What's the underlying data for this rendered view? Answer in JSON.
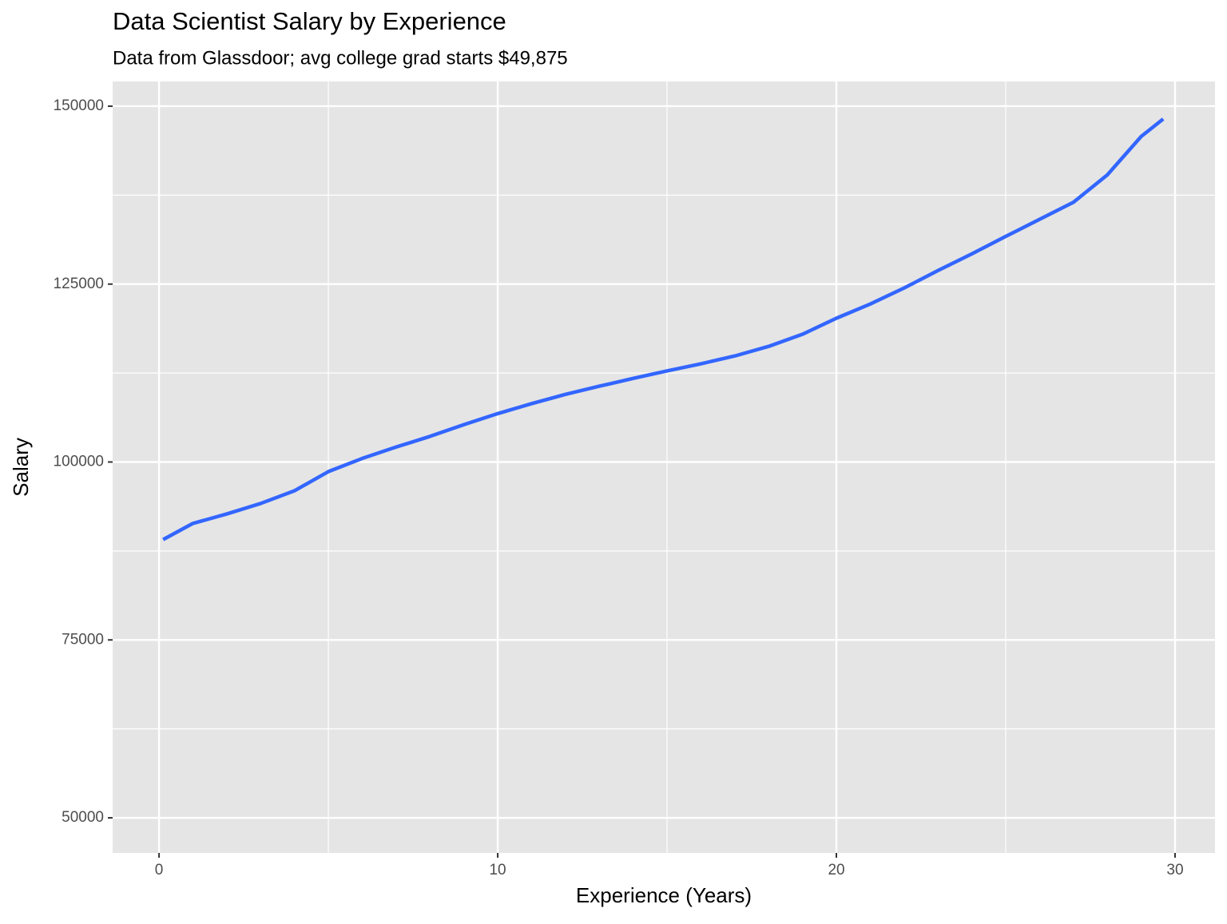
{
  "chart_data": {
    "type": "line",
    "title": "Data Scientist Salary by Experience",
    "subtitle": "Data from Glassdoor; avg college grad starts $49,875",
    "x_label": "Experience (Years)",
    "y_label": "Salary",
    "x": [
      0.12,
      1,
      2,
      3,
      4,
      5,
      6,
      7,
      8,
      9,
      10,
      11,
      12,
      13,
      14,
      15,
      16,
      17,
      18,
      19,
      20,
      21,
      22,
      23,
      24,
      25,
      26,
      27,
      28,
      29,
      29.65
    ],
    "series": [
      {
        "color": "#3366ff",
        "values": [
          89100,
          91370,
          92700,
          94170,
          95960,
          98650,
          100500,
          102100,
          103600,
          105250,
          106800,
          108200,
          109500,
          110650,
          111750,
          112800,
          113800,
          114900,
          116250,
          117950,
          120200,
          122200,
          124450,
          126900,
          129250,
          131700,
          134100,
          136500,
          140350,
          145750,
          148200
        ]
      }
    ],
    "xlim": [
      -1.37,
      31.18
    ],
    "ylim": [
      45067,
      153475
    ],
    "xticks": [
      0,
      10,
      20,
      30
    ],
    "yticks": [
      50000,
      75000,
      100000,
      125000,
      150000
    ],
    "x_minor_grid": [
      5,
      15,
      25
    ],
    "y_minor_grid": [
      62500,
      87500,
      112500,
      137500
    ],
    "grid": true,
    "panel_color": "#e5e5e5"
  }
}
